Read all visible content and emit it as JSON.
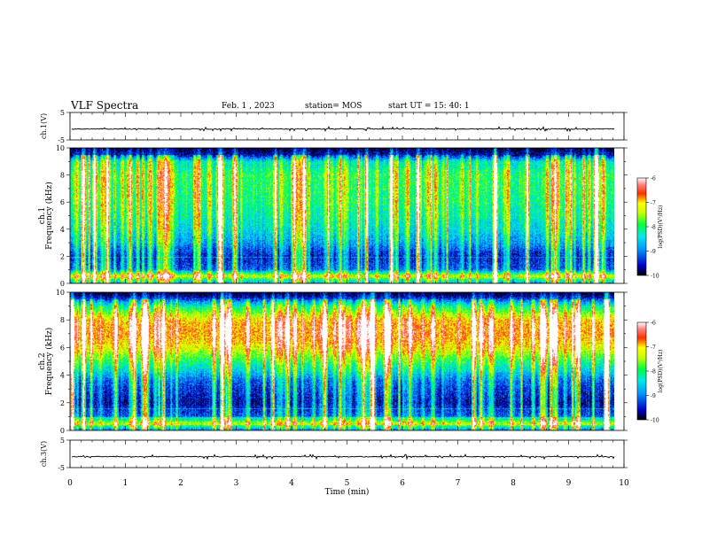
{
  "header": {
    "title": "VLF Spectra",
    "date": "Feb. 1 , 2023",
    "station": "station= MOS",
    "start": "start UT = 15: 40: 1"
  },
  "chart_data": [
    {
      "type": "line",
      "name": "ch1-waveform",
      "ylabel": "ch.1(V)",
      "ylim": [
        -5,
        5
      ],
      "yticks": [
        "5",
        "-5"
      ],
      "xlim": [
        0,
        10
      ],
      "level": -1
    },
    {
      "type": "heatmap",
      "name": "ch1-spectrogram",
      "ylabel_top": "ch.1",
      "ylabel": "Frequency (kHz)",
      "ylim": [
        0,
        10
      ],
      "yticks": [
        "0",
        "2",
        "4",
        "6",
        "8",
        "10"
      ],
      "xlim": [
        0,
        9.83
      ],
      "colorbar": {
        "label": "log(PSD)(V²/Hz)",
        "ticks": [
          "-6",
          "-7",
          "-8",
          "-9",
          "-10"
        ],
        "range": [
          -10,
          -6
        ]
      },
      "profile": [
        {
          "f": 0.0,
          "v": -9.0
        },
        {
          "f": 0.5,
          "v": -7.2
        },
        {
          "f": 1.0,
          "v": -9.2
        },
        {
          "f": 2.0,
          "v": -9.5
        },
        {
          "f": 3.0,
          "v": -8.9
        },
        {
          "f": 4.0,
          "v": -8.5
        },
        {
          "f": 6.0,
          "v": -8.1
        },
        {
          "f": 8.0,
          "v": -8.0
        },
        {
          "f": 9.0,
          "v": -8.4
        },
        {
          "f": 9.5,
          "v": -9.6
        },
        {
          "f": 10.0,
          "v": -10.0
        }
      ]
    },
    {
      "type": "heatmap",
      "name": "ch2-spectrogram",
      "ylabel_top": "ch.2",
      "ylabel": "Frequency (kHz)",
      "ylim": [
        0,
        10
      ],
      "yticks": [
        "0",
        "2",
        "4",
        "6",
        "8",
        "10"
      ],
      "xlim": [
        0,
        9.83
      ],
      "colorbar": {
        "label": "log(PSD)(V²/Hz)",
        "ticks": [
          "-6",
          "-7",
          "-8",
          "-9",
          "-10"
        ],
        "range": [
          -10,
          -6
        ]
      },
      "profile": [
        {
          "f": 0.0,
          "v": -9.0
        },
        {
          "f": 0.5,
          "v": -7.4
        },
        {
          "f": 1.0,
          "v": -9.2
        },
        {
          "f": 2.0,
          "v": -9.6
        },
        {
          "f": 3.5,
          "v": -9.2
        },
        {
          "f": 5.0,
          "v": -8.0
        },
        {
          "f": 6.0,
          "v": -7.2
        },
        {
          "f": 7.0,
          "v": -6.8
        },
        {
          "f": 8.0,
          "v": -7.0
        },
        {
          "f": 9.0,
          "v": -8.2
        },
        {
          "f": 9.6,
          "v": -9.5
        },
        {
          "f": 10.0,
          "v": -10.0
        }
      ]
    },
    {
      "type": "line",
      "name": "ch3-waveform",
      "ylabel": "ch.3(V)",
      "ylim": [
        -5,
        5
      ],
      "yticks": [
        "5",
        "-5"
      ],
      "xlim": [
        0,
        10
      ],
      "level": -1
    }
  ],
  "xaxis": {
    "label": "Time (min)",
    "ticks": [
      "0",
      "1",
      "2",
      "3",
      "4",
      "5",
      "6",
      "7",
      "8",
      "9",
      "10"
    ],
    "range": [
      0,
      10
    ]
  }
}
